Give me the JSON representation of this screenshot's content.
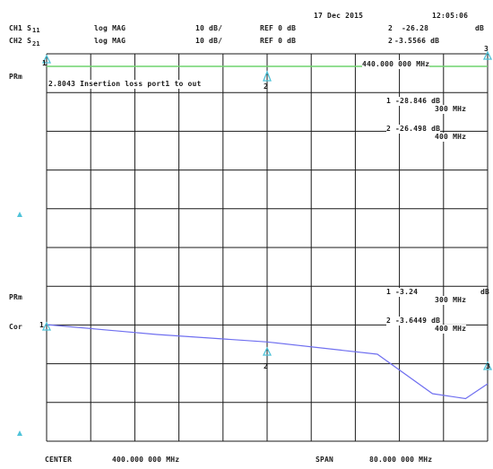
{
  "header": {
    "date": "17 Dec 2015",
    "time": "12:05:06",
    "ch1": {
      "label": "CH1 S",
      "param": "11",
      "format": "log MAG",
      "scale": "10 dB/",
      "ref": "REF 0 dB"
    },
    "ch2": {
      "label": "CH2 S",
      "param": "21",
      "format": "log MAG",
      "scale": "10 dB/",
      "ref": "REF 0 dB"
    },
    "ch1_marker": {
      "num": "2",
      "value": "-26.28",
      "unit": "dB"
    },
    "ch2_marker": {
      "num": "2",
      "value": "-3.5566 dB"
    }
  },
  "trace1": {
    "side_label": "PRm",
    "title": "2.8043 Insertion loss port1 to out",
    "marker_freq": "440.000 000 MHz",
    "m1_value": "1  -28.846 dB",
    "m1_freq": "300 MHz",
    "m2_value": "2  -26.498 dB",
    "m2_freq": "400 MHz"
  },
  "trace2": {
    "side_label": "PRm",
    "cor_label": "Cor",
    "m1_value": "1  -3.24",
    "m1_unit": "dB",
    "m1_freq": "300 MHz",
    "m2_value": "2  -3.6449 dB",
    "m2_freq": "400 MHz"
  },
  "markers": {
    "m1": "1",
    "m2": "2",
    "m3": "3",
    "m4": "1",
    "m5": "2",
    "m6": "3"
  },
  "footer": {
    "center_label": "CENTER",
    "center_value": "400.000 000 MHz",
    "span_label": "SPAN",
    "span_value": "80.000 000 MHz"
  },
  "colors": {
    "trace1": "#6fd36f",
    "trace2": "#6f6ff0",
    "marker": "#4fc3d9",
    "grid": "#1a1a1a"
  },
  "chart_data": {
    "type": "line",
    "x_center": 400,
    "x_span": 80,
    "x_divisions": 10,
    "y_divisions": 10,
    "series": [
      {
        "trace": "S11",
        "x": [
          360,
          440
        ],
        "y": [
          0,
          0
        ]
      },
      {
        "trace": "S21",
        "x": [
          360,
          380,
          400,
          420,
          430,
          436,
          440
        ],
        "y": [
          -2.9,
          -3.3,
          -3.6,
          -4.1,
          -5.7,
          -5.9,
          -5.3
        ]
      }
    ]
  }
}
